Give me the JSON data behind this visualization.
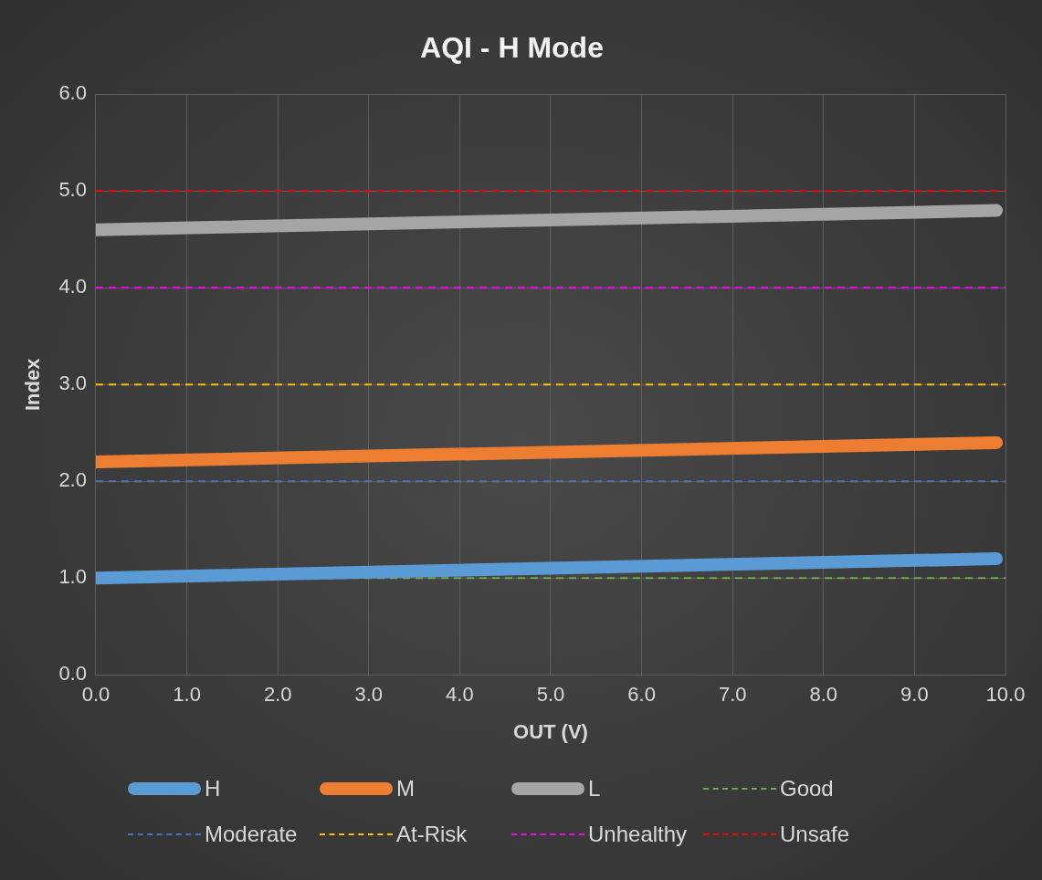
{
  "chart_data": {
    "type": "line",
    "title": "AQI - H Mode",
    "xlabel": "OUT (V)",
    "ylabel": "Index",
    "x": [
      0,
      9.9
    ],
    "series": [
      {
        "name": "H",
        "color": "#5b9bd5",
        "values": [
          1.0,
          1.2
        ]
      },
      {
        "name": "M",
        "color": "#ed7d31",
        "values": [
          2.2,
          2.4
        ]
      },
      {
        "name": "L",
        "color": "#a5a5a5",
        "values": [
          4.6,
          4.8
        ]
      }
    ],
    "ref_lines": [
      {
        "axis": "y",
        "value": 1,
        "label": "Good",
        "color": "#70ad47",
        "line_style": "dashed"
      },
      {
        "axis": "y",
        "value": 2,
        "label": "Moderate",
        "color": "#4472c4",
        "line_style": "dashed"
      },
      {
        "axis": "y",
        "value": 3,
        "label": "At-Risk",
        "color": "#ffc000",
        "line_style": "dashed"
      },
      {
        "axis": "y",
        "value": 4,
        "label": "Unhealthy",
        "color": "#ff00ff",
        "line_style": "dashed"
      },
      {
        "axis": "y",
        "value": 5,
        "label": "Unsafe",
        "color": "#ff0000",
        "line_style": "dashed"
      }
    ],
    "xlim": [
      0,
      10
    ],
    "ylim": [
      0,
      6
    ],
    "xticks": [
      {
        "value": 0,
        "label": "0.0"
      },
      {
        "value": 1,
        "label": "1.0"
      },
      {
        "value": 2,
        "label": "2.0"
      },
      {
        "value": 3,
        "label": "3.0"
      },
      {
        "value": 4,
        "label": "4.0"
      },
      {
        "value": 5,
        "label": "5.0"
      },
      {
        "value": 6,
        "label": "6.0"
      },
      {
        "value": 7,
        "label": "7.0"
      },
      {
        "value": 8,
        "label": "8.0"
      },
      {
        "value": 9,
        "label": "9.0"
      },
      {
        "value": 10,
        "label": "10.0"
      }
    ],
    "yticks": [
      {
        "value": 0,
        "label": "0.0"
      },
      {
        "value": 1,
        "label": "1.0"
      },
      {
        "value": 2,
        "label": "2.0"
      },
      {
        "value": 3,
        "label": "3.0"
      },
      {
        "value": 4,
        "label": "4.0"
      },
      {
        "value": 5,
        "label": "5.0"
      },
      {
        "value": 6,
        "label": "6.0"
      }
    ],
    "grid": true,
    "legend": "bottom",
    "marker": "none",
    "line_style": "solid"
  }
}
